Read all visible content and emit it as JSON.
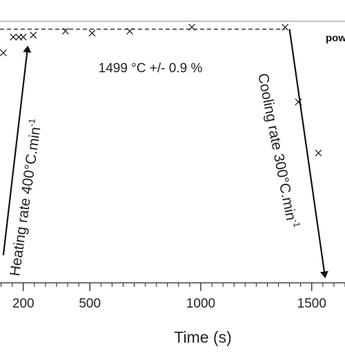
{
  "chart_data": {
    "type": "scatter",
    "title": "",
    "xlabel": "Time (s)",
    "ylabel": "",
    "xlim": [
      95,
      1650
    ],
    "x_ticks": [
      200,
      500,
      1000,
      1500
    ],
    "x_tick_labels": [
      "200",
      "500",
      "1000",
      "1500"
    ],
    "y_unit": "°C",
    "y_plot_range": [
      1370,
      1503
    ],
    "hold_line": {
      "y": 1499,
      "x_range": [
        95,
        1380
      ]
    },
    "series": [
      {
        "points": [
          {
            "x": 110,
            "y": 1487
          },
          {
            "x": 155,
            "y": 1495
          },
          {
            "x": 180,
            "y": 1495
          },
          {
            "x": 200,
            "y": 1495
          },
          {
            "x": 245,
            "y": 1496
          },
          {
            "x": 390,
            "y": 1498
          },
          {
            "x": 510,
            "y": 1497
          },
          {
            "x": 680,
            "y": 1498
          },
          {
            "x": 960,
            "y": 1500
          },
          {
            "x": 1380,
            "y": 1500
          },
          {
            "x": 1440,
            "y": 1462
          },
          {
            "x": 1530,
            "y": 1436
          }
        ]
      }
    ],
    "annotations": {
      "hold": "1499 °C +/- 0.9 %",
      "heating_main": "Heating rate 400°C.min",
      "heating_exp": "-1",
      "cooling_main": "Cooling rate 300°C.min",
      "cooling_exp": "-1",
      "legend_fragment": "pow"
    },
    "arrows": [
      {
        "label": "heating",
        "from": {
          "x": 110,
          "y": 1384
        },
        "to": {
          "x": 220,
          "y": 1490
        }
      },
      {
        "label": "cooling",
        "from": {
          "x": 1400,
          "y": 1499
        },
        "to": {
          "x": 1560,
          "y": 1373
        }
      }
    ],
    "grid": false
  }
}
